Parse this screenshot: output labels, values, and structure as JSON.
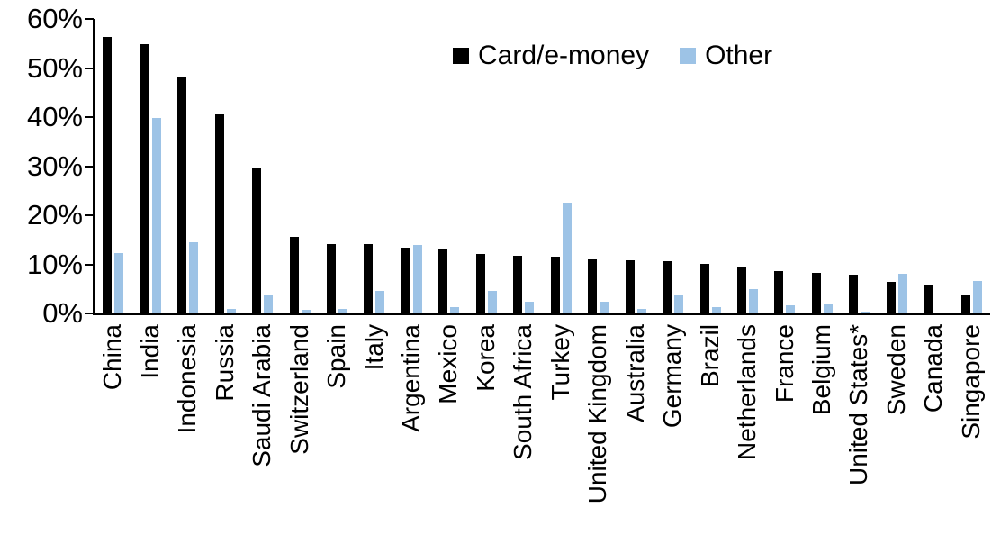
{
  "chart_data": {
    "type": "bar",
    "title": "",
    "xlabel": "",
    "ylabel": "",
    "categories": [
      "China",
      "India",
      "Indonesia",
      "Russia",
      "Saudi Arabia",
      "Switzerland",
      "Spain",
      "Italy",
      "Argentina",
      "Mexico",
      "Korea",
      "South Africa",
      "Turkey",
      "United Kingdom",
      "Australia",
      "Germany",
      "Brazil",
      "Netherlands",
      "France",
      "Belgium",
      "United States*",
      "Sweden",
      "Canada",
      "Singapore"
    ],
    "series": [
      {
        "name": "Card/e-money",
        "color": "#000000",
        "values": [
          56.3,
          54.9,
          48.3,
          40.5,
          29.8,
          15.6,
          14.2,
          14.1,
          13.4,
          13.0,
          12.2,
          11.8,
          11.6,
          11.1,
          10.8,
          10.6,
          10.0,
          9.3,
          8.6,
          8.2,
          7.8,
          6.4,
          5.9,
          3.7
        ]
      },
      {
        "name": "Other",
        "color": "#9DC3E6",
        "values": [
          12.3,
          39.8,
          14.5,
          1.0,
          3.8,
          0.7,
          1.0,
          4.6,
          13.9,
          1.3,
          4.6,
          2.3,
          22.6,
          2.3,
          1.0,
          3.9,
          1.3,
          4.9,
          1.6,
          2.1,
          0.3,
          8.0,
          0.0,
          6.6
        ]
      }
    ],
    "ylim": [
      0,
      60
    ],
    "ytick_values": [
      0,
      10,
      20,
      30,
      40,
      50,
      60
    ],
    "ytick_labels": [
      "0%",
      "10%",
      "20%",
      "30%",
      "40%",
      "50%",
      "60%"
    ],
    "grid": false,
    "legend_position": "top"
  }
}
